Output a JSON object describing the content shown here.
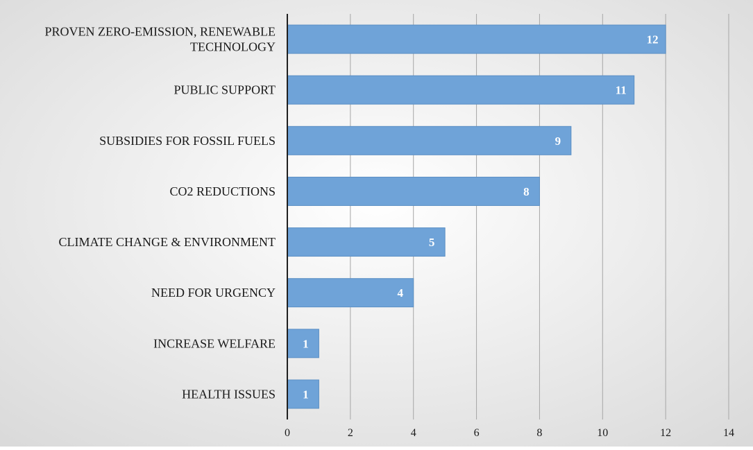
{
  "chart_data": {
    "type": "bar",
    "orientation": "horizontal",
    "categories": [
      "PROVEN ZERO-EMISSION, RENEWABLE TECHNOLOGY",
      "PUBLIC SUPPORT",
      "SUBSIDIES FOR FOSSIL FUELS",
      "CO2 REDUCTIONS",
      "CLIMATE CHANGE & ENVIRONMENT",
      "NEED FOR URGENCY",
      "INCREASE WELFARE",
      "HEALTH ISSUES"
    ],
    "category_lines": [
      [
        "PROVEN ZERO-EMISSION, RENEWABLE",
        "TECHNOLOGY"
      ],
      [
        "PUBLIC SUPPORT"
      ],
      [
        "SUBSIDIES FOR FOSSIL FUELS"
      ],
      [
        "CO2 REDUCTIONS"
      ],
      [
        "CLIMATE CHANGE & ENVIRONMENT"
      ],
      [
        "NEED FOR URGENCY"
      ],
      [
        "INCREASE WELFARE"
      ],
      [
        "HEALTH ISSUES"
      ]
    ],
    "values": [
      12,
      11,
      9,
      8,
      5,
      4,
      1,
      1
    ],
    "data_labels": [
      "12",
      "11",
      "9",
      "8",
      "5",
      "4",
      "1",
      "1"
    ],
    "xlim": [
      0,
      14
    ],
    "x_ticks": [
      0,
      2,
      4,
      6,
      8,
      10,
      12,
      14
    ],
    "x_tick_labels": [
      "0",
      "2",
      "4",
      "6",
      "8",
      "10",
      "12",
      "14"
    ],
    "title": "",
    "xlabel": "",
    "ylabel": "",
    "grid": "vertical",
    "legend": "none",
    "colors": {
      "bar_fill": "#6fa3d8",
      "bar_stroke": "#5b8fc4",
      "data_label": "#ffffff",
      "gridline": "#a6a6a6",
      "axis_line": "#1f1f1f",
      "text": "#1a1a1a",
      "background_light": "#ffffff",
      "background_dark": "#d9d9d9"
    }
  }
}
